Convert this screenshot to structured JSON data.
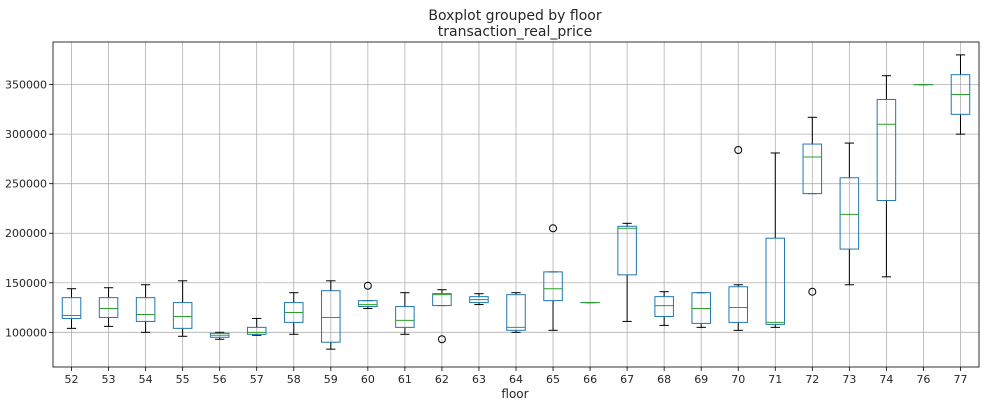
{
  "chart_data": {
    "type": "boxplot",
    "title": "Boxplot grouped by floor",
    "subtitle": "transaction_real_price",
    "xlabel": "floor",
    "ylabel": "",
    "ylim": [
      65000,
      393000
    ],
    "yticks": [
      100000,
      150000,
      200000,
      250000,
      300000,
      350000
    ],
    "ytick_labels": [
      "100000",
      "150000",
      "200000",
      "250000",
      "300000",
      "350000"
    ],
    "grid": true,
    "colors": {
      "box": "#1f77b4",
      "median": "#2ca02c",
      "whisker": "#000000",
      "outlier": "#000000"
    },
    "categories": [
      "52",
      "53",
      "54",
      "55",
      "56",
      "57",
      "58",
      "59",
      "60",
      "61",
      "62",
      "63",
      "64",
      "65",
      "66",
      "67",
      "68",
      "69",
      "70",
      "71",
      "72",
      "73",
      "74",
      "76",
      "77"
    ],
    "boxes": [
      {
        "label": "52",
        "whislo": 104000,
        "q1": 114000,
        "med": 117000,
        "q3": 135000,
        "whishi": 144000,
        "fliers": []
      },
      {
        "label": "53",
        "whislo": 106000,
        "q1": 115000,
        "med": 124000,
        "q3": 135000,
        "whishi": 145000,
        "fliers": []
      },
      {
        "label": "54",
        "whislo": 100000,
        "q1": 111000,
        "med": 118000,
        "q3": 135000,
        "whishi": 148000,
        "fliers": []
      },
      {
        "label": "55",
        "whislo": 96000,
        "q1": 104000,
        "med": 116000,
        "q3": 130000,
        "whishi": 152000,
        "fliers": []
      },
      {
        "label": "56",
        "whislo": 93000,
        "q1": 95000,
        "med": 97000,
        "q3": 99000,
        "whishi": 100000,
        "fliers": []
      },
      {
        "label": "57",
        "whislo": 97000,
        "q1": 98000,
        "med": 100000,
        "q3": 105000,
        "whishi": 114000,
        "fliers": []
      },
      {
        "label": "58",
        "whislo": 98000,
        "q1": 110000,
        "med": 120000,
        "q3": 130000,
        "whishi": 140000,
        "fliers": []
      },
      {
        "label": "59",
        "whislo": 83000,
        "q1": 90000,
        "med": 115000,
        "q3": 142000,
        "whishi": 152000,
        "fliers": []
      },
      {
        "label": "60",
        "whislo": 124000,
        "q1": 126000,
        "med": 128000,
        "q3": 132000,
        "whishi": 132000,
        "fliers": [
          147000
        ]
      },
      {
        "label": "61",
        "whislo": 98000,
        "q1": 105000,
        "med": 112000,
        "q3": 126000,
        "whishi": 140000,
        "fliers": []
      },
      {
        "label": "62",
        "whislo": 127000,
        "q1": 127000,
        "med": 138000,
        "q3": 139000,
        "whishi": 143000,
        "fliers": [
          93000
        ]
      },
      {
        "label": "63",
        "whislo": 128000,
        "q1": 130000,
        "med": 133000,
        "q3": 136000,
        "whishi": 139000,
        "fliers": []
      },
      {
        "label": "64",
        "whislo": 100000,
        "q1": 102000,
        "med": 105000,
        "q3": 138000,
        "whishi": 140000,
        "fliers": []
      },
      {
        "label": "65",
        "whislo": 102000,
        "q1": 132000,
        "med": 144000,
        "q3": 161000,
        "whishi": 161000,
        "fliers": [
          205000
        ]
      },
      {
        "label": "66",
        "whislo": 130000,
        "q1": 130000,
        "med": 130000,
        "q3": 130000,
        "whishi": 130000,
        "fliers": []
      },
      {
        "label": "67",
        "whislo": 111000,
        "q1": 158000,
        "med": 205000,
        "q3": 207000,
        "whishi": 210000,
        "fliers": []
      },
      {
        "label": "68",
        "whislo": 107000,
        "q1": 116000,
        "med": 127000,
        "q3": 136000,
        "whishi": 141000,
        "fliers": []
      },
      {
        "label": "69",
        "whislo": 105000,
        "q1": 109000,
        "med": 124000,
        "q3": 140000,
        "whishi": 140000,
        "fliers": []
      },
      {
        "label": "70",
        "whislo": 102000,
        "q1": 110000,
        "med": 125000,
        "q3": 146000,
        "whishi": 148000,
        "fliers": [
          284000
        ]
      },
      {
        "label": "71",
        "whislo": 105000,
        "q1": 108000,
        "med": 110000,
        "q3": 195000,
        "whishi": 281000,
        "fliers": []
      },
      {
        "label": "72",
        "whislo": 240000,
        "q1": 240000,
        "med": 277000,
        "q3": 290000,
        "whishi": 317000,
        "fliers": [
          141000
        ]
      },
      {
        "label": "73",
        "whislo": 148000,
        "q1": 184000,
        "med": 219000,
        "q3": 256000,
        "whishi": 291000,
        "fliers": []
      },
      {
        "label": "74",
        "whislo": 156000,
        "q1": 233000,
        "med": 310000,
        "q3": 335000,
        "whishi": 359000,
        "fliers": []
      },
      {
        "label": "76",
        "whislo": 350000,
        "q1": 350000,
        "med": 350000,
        "q3": 350000,
        "whishi": 350000,
        "fliers": []
      },
      {
        "label": "77",
        "whislo": 300000,
        "q1": 320000,
        "med": 340000,
        "q3": 360000,
        "whishi": 380000,
        "fliers": []
      }
    ]
  }
}
